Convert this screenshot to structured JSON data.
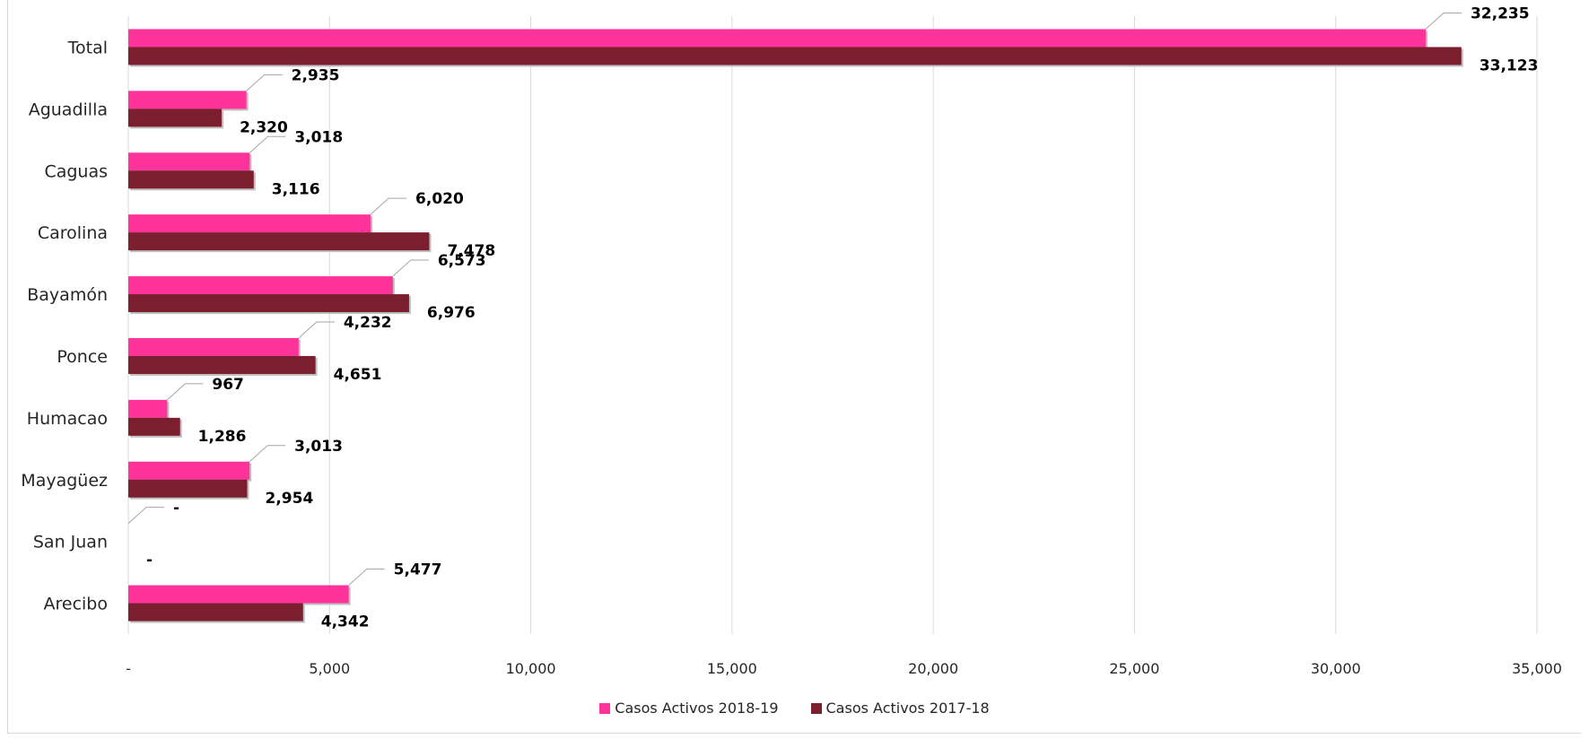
{
  "chart_data": {
    "type": "bar",
    "orientation": "horizontal",
    "categories": [
      "Total",
      "Aguadilla",
      "Caguas",
      "Carolina",
      "Bayamón",
      "Ponce",
      "Humacao",
      "Mayagüez",
      "San Juan",
      "Arecibo"
    ],
    "series": [
      {
        "name": "Casos Activos 2018-19",
        "color": "#ff3399",
        "values": [
          32235,
          2935,
          3018,
          6020,
          6573,
          4232,
          967,
          3013,
          0,
          5477
        ],
        "labels": [
          "32,235",
          "2,935",
          "3,018",
          "6,020",
          "6,573",
          "4,232",
          "967",
          "3,013",
          "-",
          "5,477"
        ]
      },
      {
        "name": "Casos Activos 2017-18",
        "color": "#7b1f2e",
        "values": [
          33123,
          2320,
          3116,
          7478,
          6976,
          4651,
          1286,
          2954,
          0,
          4342
        ],
        "labels": [
          "33,123",
          "2,320",
          "3,116",
          "7,478",
          "6,976",
          "4,651",
          "1,286",
          "2,954",
          "-",
          "4,342"
        ]
      }
    ],
    "xlim": [
      0,
      35000
    ],
    "x_ticks": [
      0,
      5000,
      10000,
      15000,
      20000,
      25000,
      30000,
      35000
    ],
    "x_tick_labels": [
      "-",
      "5,000",
      "10,000",
      "15,000",
      "20,000",
      "25,000",
      "30,000",
      "35,000"
    ],
    "grid": "vertical",
    "legend_position": "bottom",
    "title": "",
    "xlabel": "",
    "ylabel": ""
  }
}
